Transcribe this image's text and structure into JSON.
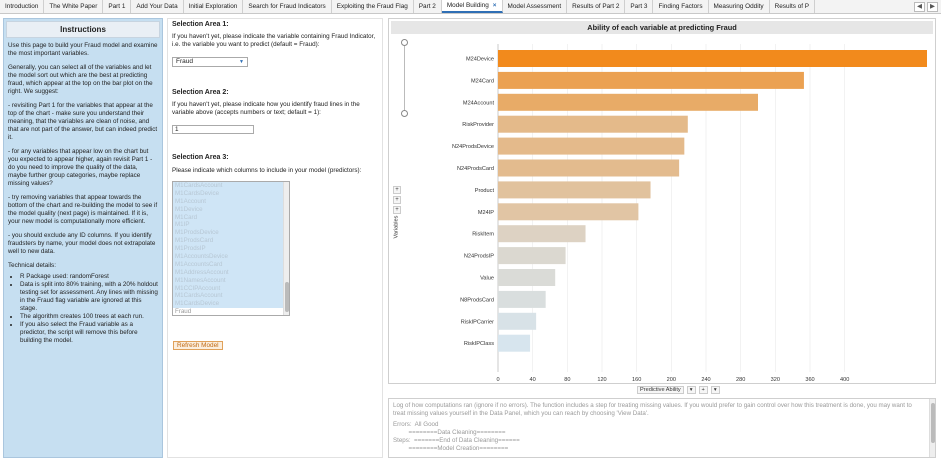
{
  "tabs": [
    {
      "label": "Introduction",
      "active": false
    },
    {
      "label": "The White Paper",
      "active": false
    },
    {
      "label": "Part 1",
      "active": false
    },
    {
      "label": "Add Your Data",
      "active": false
    },
    {
      "label": "Initial Exploration",
      "active": false
    },
    {
      "label": "Search for Fraud Indicators",
      "active": false
    },
    {
      "label": "Exploiting the Fraud Flag",
      "active": false
    },
    {
      "label": "Part 2",
      "active": false
    },
    {
      "label": "Model Building",
      "active": true
    },
    {
      "label": "Model Assessment",
      "active": false
    },
    {
      "label": "Results of Part 2",
      "active": false
    },
    {
      "label": "Part 3",
      "active": false
    },
    {
      "label": "Finding Factors",
      "active": false
    },
    {
      "label": "Measuring Oddity",
      "active": false
    },
    {
      "label": "Results of P",
      "active": false
    }
  ],
  "tab_close_glyph": "×",
  "tab_nav": {
    "left": "◀",
    "right": "▶"
  },
  "instructions": {
    "title": "Instructions",
    "paragraphs": [
      "Use this page to build your Fraud model and examine the most important variables.",
      "Generally, you can select all of the variables and let the model sort out which are the best at predicting fraud, which appear at the top on the bar plot on the right. We suggest:",
      "- revisiting Part 1 for the variables that appear at the top of the chart - make sure you understand their meaning, that the variables are clean of noise, and that are not part of the answer, but can indeed predict it.",
      "- for any variables that appear low on the chart but you expected to appear higher, again revisit Part 1 - do you need to improve the quality of the data, maybe further group categories, maybe replace missing values?",
      "- try removing variables that appear towards the bottom of the chart and re-building the model to see if the model quality (next page) is maintained. If it is, your new model is computationally more efficient.",
      "- you should exclude any ID columns. If you identify fraudsters by name, your model does not extrapolate well to new data.",
      "Technical details:"
    ],
    "technical": [
      "R Package used: randomForest",
      "Data is split into 80% training, with a 20% holdout testing set for assessment. Any lines with missing in the Fraud flag variable are ignored at this stage.",
      "The algorithm creates 100 trees at each run.",
      "If you also select the Fraud variable as a predictor, the script will remove this before building the model."
    ]
  },
  "selection": {
    "area1": {
      "heading": "Selection Area 1:",
      "text": "If you haven't yet, please indicate the variable containing Fraud Indicator, i.e. the variable you want to predict (default = Fraud):",
      "dropdown_value": "Fraud"
    },
    "area2": {
      "heading": "Selection Area 2:",
      "text": "If you haven't yet, please indicate how you identify fraud lines in the variable above (accepts numbers or text; default = 1):",
      "input_value": "1"
    },
    "area3": {
      "heading": "Selection Area 3:",
      "text": "Please indicate which columns to include in your model (predictors):",
      "options": [
        {
          "label": "M1CardsAccount",
          "selected": true
        },
        {
          "label": "M1CardsDevice",
          "selected": true
        },
        {
          "label": "M1Account",
          "selected": true
        },
        {
          "label": "M1Device",
          "selected": true
        },
        {
          "label": "M1Card",
          "selected": true
        },
        {
          "label": "M1IP",
          "selected": true
        },
        {
          "label": "M1ProdsDevice",
          "selected": true
        },
        {
          "label": "M1ProdsCard",
          "selected": true
        },
        {
          "label": "M1ProdsIP",
          "selected": true
        },
        {
          "label": "M1AccountsDevice",
          "selected": true
        },
        {
          "label": "M1AccountsCard",
          "selected": true
        },
        {
          "label": "M1AddressAccount",
          "selected": true
        },
        {
          "label": "M1NamesAccount",
          "selected": true
        },
        {
          "label": "M1CCIPAccount",
          "selected": true
        },
        {
          "label": "M1CardsAccount",
          "selected": true
        },
        {
          "label": "M1CardsDevice",
          "selected": true
        },
        {
          "label": "Fraud",
          "selected": false
        }
      ]
    },
    "refresh_label": "Refresh Model"
  },
  "chart": {
    "side_controls": [
      "+",
      "+",
      "+"
    ],
    "y_control_label": "Variables",
    "x_control_label": "Predictive Ability",
    "x_control_buttons": [
      "▾",
      "+",
      "▾"
    ]
  },
  "chart_data": {
    "type": "bar",
    "orientation": "horizontal",
    "title": "Ability of each variable at predicting Fraud",
    "xlabel": "",
    "ylabel": "",
    "categories": [
      "M24Device",
      "M24Card",
      "M24Account",
      "RiskProvider",
      "N24ProdsDevice",
      "N24ProdsCard",
      "Product",
      "M24IP",
      "RiskItem",
      "N24ProdsIP",
      "Value",
      "N8ProdsCard",
      "RiskIPCarrier",
      "RiskIPClass"
    ],
    "values": [
      495,
      353,
      300,
      219,
      215,
      209,
      176,
      162,
      101,
      78,
      66,
      55,
      44,
      37
    ],
    "xlim": [
      0,
      495
    ],
    "x_ticks": [
      0,
      40,
      80,
      120,
      160,
      200,
      240,
      280,
      320,
      360,
      400
    ],
    "x_tick_labels": [
      "0",
      "40",
      "80",
      "120",
      "160",
      "200",
      "240",
      "280",
      "320",
      "360",
      "400"
    ],
    "bar_color_high": "#f28a1c",
    "bar_color_low": "#d7e5ee",
    "grid": true,
    "legend": "none"
  },
  "log": {
    "intro": "Log of how computations ran (ignore if no errors). The function includes a step for treating missing values. If you would prefer to gain control over how this treatment is done, you may want to treat missing values yourself in the Data Panel, which you can reach by choosing 'View Data'.",
    "lines": [
      "Errors:  All Good",
      "         ========Data Cleaning========",
      "Steps:  =======End of Data Cleaning======",
      "         ========Model Creation========"
    ]
  }
}
